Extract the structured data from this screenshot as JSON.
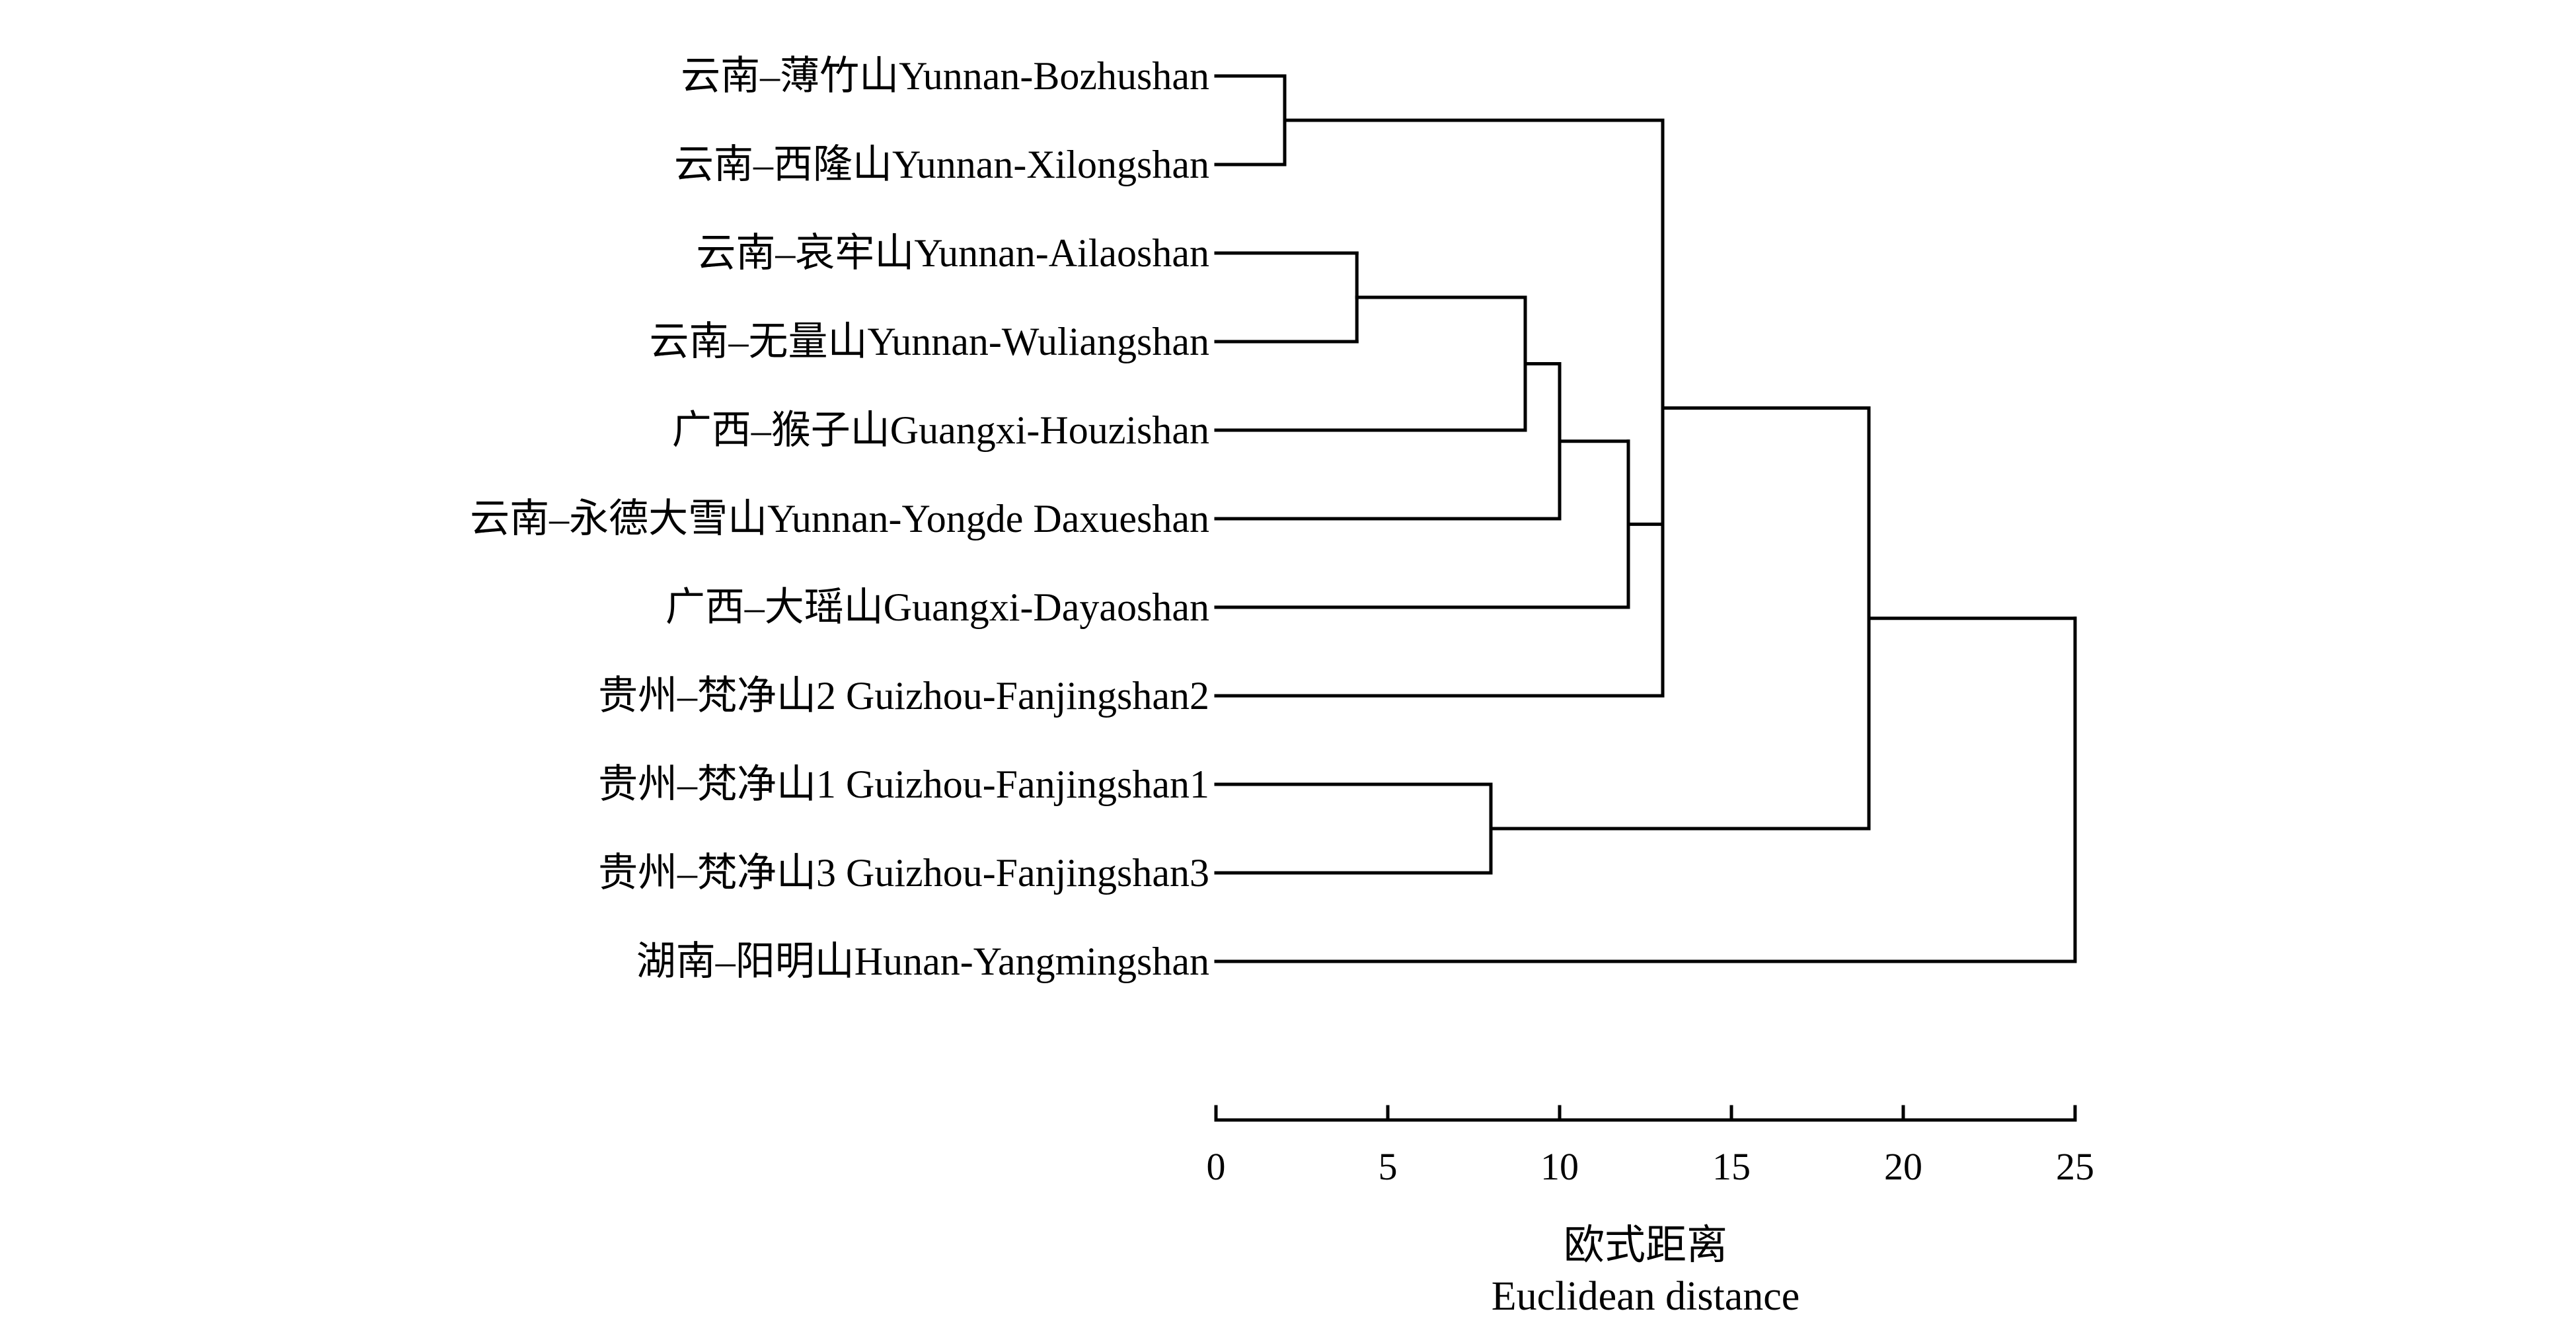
{
  "chart_data": {
    "type": "dendrogram",
    "title": "",
    "xlabel": "欧式距离",
    "xlabel_en": "Euclidean distance",
    "ylabel": "",
    "xlim": [
      0,
      25
    ],
    "x_ticks": [
      0,
      5,
      10,
      15,
      20,
      25
    ],
    "x_tick_labels": [
      "0",
      "5",
      "10",
      "15",
      "20",
      "25"
    ],
    "grid": false,
    "legend": "none",
    "line_color": "#000000",
    "leaves": [
      "云南–薄竹山Yunnan-Bozhushan",
      "云南–西隆山Yunnan-Xilongshan",
      "云南–哀牢山Yunnan-Ailaoshan",
      "云南–无量山Yunnan-Wuliangshan",
      "广西–猴子山Guangxi-Houzishan",
      "云南–永德大雪山Yunnan-Yongde Daxueshan",
      "广西–大瑶山Guangxi-Dayaoshan",
      "贵州–梵净山2 Guizhou-Fanjingshan2",
      "贵州–梵净山1 Guizhou-Fanjingshan1",
      "贵州–梵净山3 Guizhou-Fanjingshan3",
      "湖南–阳明山Hunan-Yangmingshan"
    ],
    "merges": [
      {
        "id": "c1",
        "children": [
          "L0",
          "L1"
        ],
        "distance": 2
      },
      {
        "id": "c2",
        "children": [
          "L2",
          "L3"
        ],
        "distance": 4.1
      },
      {
        "id": "c3",
        "children": [
          "c2",
          "L4"
        ],
        "distance": 9
      },
      {
        "id": "c4",
        "children": [
          "c3",
          "L5"
        ],
        "distance": 10
      },
      {
        "id": "c5",
        "children": [
          "c4",
          "L6"
        ],
        "distance": 12
      },
      {
        "id": "c6",
        "children": [
          "c1",
          "c5",
          "L7"
        ],
        "distance": 13
      },
      {
        "id": "c7",
        "children": [
          "L8",
          "L9"
        ],
        "distance": 8
      },
      {
        "id": "c8",
        "children": [
          "c6",
          "c7"
        ],
        "distance": 19
      },
      {
        "id": "c9",
        "children": [
          "c8",
          "L10"
        ],
        "distance": 25
      }
    ]
  }
}
